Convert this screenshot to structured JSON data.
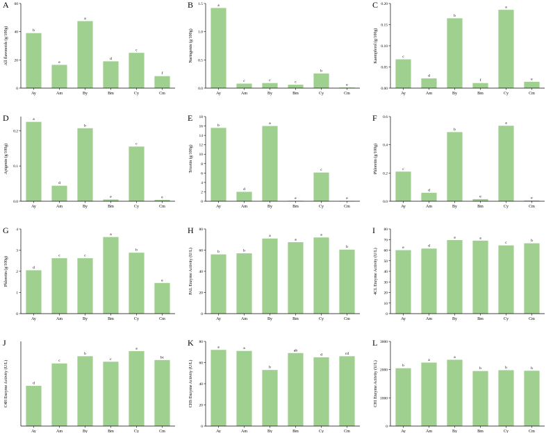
{
  "colors": {
    "bar": "#9fd090",
    "axis": "#000000"
  },
  "chart_data": [
    {
      "type": "bar",
      "panel_label": "A",
      "ylabel": "All flavonoids (g/100g)",
      "categories": [
        "Ay",
        "Am",
        "By",
        "Bm",
        "Cy",
        "Cm"
      ],
      "values": [
        39,
        16.5,
        47.5,
        19,
        25,
        8.5
      ],
      "letters": [
        "b",
        "e",
        "a",
        "d",
        "c",
        "f"
      ],
      "ylim": [
        0,
        60
      ],
      "yticks": [
        "0",
        "20",
        "40",
        "60"
      ],
      "grid": false
    },
    {
      "type": "bar",
      "panel_label": "B",
      "ylabel": "Naringenin (g/100g)",
      "categories": [
        "Ay",
        "Am",
        "By",
        "Bm",
        "Cy",
        "Cm"
      ],
      "values": [
        1.42,
        0.08,
        0.09,
        0.06,
        0.26,
        0.01
      ],
      "letters": [
        "a",
        "c",
        "c",
        "c",
        "b",
        "e"
      ],
      "ylim": [
        0,
        1.5
      ],
      "yticks": [
        "0.0",
        "0.5",
        "1.0",
        "1.5"
      ],
      "grid": false
    },
    {
      "type": "bar",
      "panel_label": "C",
      "ylabel": "Kaempferol (g/100g)",
      "categories": [
        "Ay",
        "Am",
        "By",
        "Bm",
        "Cy",
        "Cm"
      ],
      "values": [
        0.068,
        0.023,
        0.165,
        0.012,
        0.185,
        0.015
      ],
      "letters": [
        "c",
        "d",
        "b",
        "f",
        "a",
        "e"
      ],
      "ylim": [
        0,
        0.2
      ],
      "yticks": [
        "0.00",
        "0.05",
        "0.10",
        "0.15",
        "0.20"
      ],
      "grid": false
    },
    {
      "type": "bar",
      "panel_label": "D",
      "ylabel": "Apigenin (g/100g)",
      "categories": [
        "Ay",
        "Am",
        "By",
        "Bm",
        "Cy",
        "Cm"
      ],
      "values": [
        0.225,
        0.044,
        0.207,
        0.005,
        0.155,
        0.004
      ],
      "letters": [
        "a",
        "d",
        "b",
        "e",
        "c",
        "e"
      ],
      "ylim": [
        0,
        0.24
      ],
      "yticks": [
        "0.0",
        "0.1",
        "0.2"
      ],
      "ytick_values": [
        0,
        0.1,
        0.2
      ],
      "grid": false
    },
    {
      "type": "bar",
      "panel_label": "E",
      "ylabel": "Tricetin (g/100g)",
      "categories": [
        "Ay",
        "Am",
        "By",
        "Bm",
        "Cy",
        "Cm"
      ],
      "values": [
        15.6,
        2.0,
        16.0,
        0.1,
        6.1,
        0.05
      ],
      "letters": [
        "b",
        "d",
        "a",
        "e",
        "c",
        "e"
      ],
      "ylim": [
        0,
        18
      ],
      "yticks": [
        "0",
        "2",
        "4",
        "6",
        "8",
        "10",
        "12",
        "14",
        "16",
        "18"
      ],
      "grid": false
    },
    {
      "type": "bar",
      "panel_label": "F",
      "ylabel": "Phloretin (g/100g)",
      "categories": [
        "Ay",
        "Am",
        "By",
        "Bm",
        "Cy",
        "Cm"
      ],
      "values": [
        0.21,
        0.06,
        0.49,
        0.015,
        0.535,
        0.005
      ],
      "letters": [
        "c",
        "d",
        "b",
        "e",
        "a",
        "e"
      ],
      "ylim": [
        0,
        0.6
      ],
      "yticks": [
        "0.0",
        "0.2",
        "0.4",
        "0.6"
      ],
      "grid": false
    },
    {
      "type": "bar",
      "panel_label": "G",
      "ylabel": "Phloretin (g/100g)",
      "categories": [
        "Ay",
        "Am",
        "By",
        "Bm",
        "Cy",
        "Cm"
      ],
      "values": [
        2.05,
        2.62,
        2.62,
        3.62,
        2.88,
        1.45
      ],
      "letters": [
        "d",
        "c",
        "c",
        "a",
        "b",
        "e"
      ],
      "ylim": [
        0,
        4
      ],
      "yticks": [
        "0",
        "1",
        "2",
        "3",
        "4"
      ],
      "grid": false
    },
    {
      "type": "bar",
      "panel_label": "H",
      "ylabel": "PAL Enzyme Activity (U/L)",
      "categories": [
        "Ay",
        "Am",
        "By",
        "Bm",
        "Cy",
        "Cm"
      ],
      "values": [
        56,
        57,
        71,
        67.5,
        72,
        60.5
      ],
      "letters": [
        "b",
        "b",
        "a",
        "a",
        "a",
        "b"
      ],
      "ylim": [
        0,
        80
      ],
      "yticks": [
        "0",
        "20",
        "40",
        "60",
        "80"
      ],
      "grid": false
    },
    {
      "type": "bar",
      "panel_label": "I",
      "ylabel": "4CL Enzyme Activity (U/L)",
      "categories": [
        "Ay",
        "Am",
        "By",
        "Bm",
        "Cy",
        "Cm"
      ],
      "values": [
        60,
        61.5,
        69.5,
        69,
        64.5,
        66.5
      ],
      "letters": [
        "e",
        "d",
        "a",
        "a",
        "c",
        "b"
      ],
      "ylim": [
        0,
        80
      ],
      "yticks": [
        "0",
        "10",
        "20",
        "30",
        "40",
        "50",
        "60",
        "70",
        "80"
      ],
      "grid": false
    },
    {
      "type": "bar",
      "panel_label": "J",
      "ylabel": "C4H Enzyme Activity (U/L)",
      "categories": [
        "Ay",
        "Am",
        "By",
        "Bm",
        "Cy",
        "Cm"
      ],
      "values": [
        95,
        148,
        165,
        152,
        177,
        156
      ],
      "letters": [
        "d",
        "c",
        "b",
        "c",
        "a",
        "bc"
      ],
      "ylim": [
        0,
        200
      ],
      "yticks": [],
      "grid": false
    },
    {
      "type": "bar",
      "panel_label": "K",
      "ylabel": "CHS Enzyme Activity (U/L)",
      "categories": [
        "Ay",
        "Am",
        "By",
        "Bm",
        "Cy",
        "Cm"
      ],
      "values": [
        72,
        71,
        53,
        69,
        65,
        66
      ],
      "letters": [
        "a",
        "a",
        "b",
        "ab",
        "d",
        "cd"
      ],
      "ylim": [
        0,
        80
      ],
      "yticks": [
        "0",
        "20",
        "40",
        "60",
        "80"
      ],
      "grid": false
    },
    {
      "type": "bar",
      "panel_label": "L",
      "ylabel": "CHI Enzyme Activity (U/L)",
      "categories": [
        "Ay",
        "Am",
        "By",
        "Bm",
        "Cy",
        "Cm"
      ],
      "values": [
        2050,
        2250,
        2350,
        1950,
        1980,
        1960
      ],
      "letters": [
        "b",
        "a",
        "a",
        "b",
        "b",
        "b"
      ],
      "ylim": [
        0,
        3000
      ],
      "yticks": [
        "0",
        "1000",
        "2000",
        "3000"
      ],
      "grid": false
    }
  ]
}
